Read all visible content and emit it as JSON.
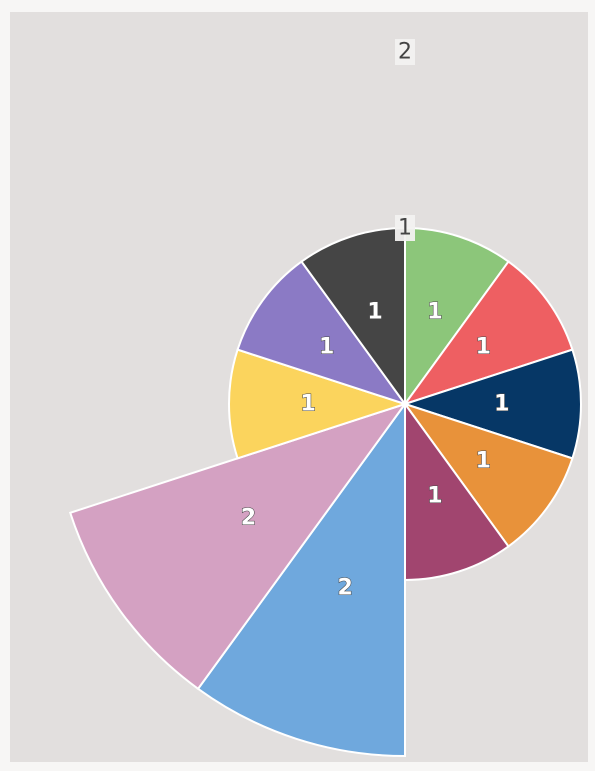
{
  "chart_data": {
    "type": "pie",
    "subtype": "polar-area",
    "title": "",
    "categories": [
      "green",
      "red",
      "navy",
      "orange",
      "maroon",
      "blue",
      "pink",
      "yellow",
      "purple",
      "black"
    ],
    "values": [
      1,
      1,
      1,
      1,
      1,
      2,
      2,
      1,
      1,
      1
    ],
    "colors": [
      "#8cc67a",
      "#ee5f62",
      "#063766",
      "#e8923a",
      "#a1456f",
      "#6fa8dd",
      "#d4a1c2",
      "#fbd45d",
      "#8b7ac5",
      "#454545"
    ],
    "radial_ticks": [
      "1",
      "2"
    ],
    "rlim": [
      0,
      2
    ],
    "legend": "none",
    "grid": false
  }
}
